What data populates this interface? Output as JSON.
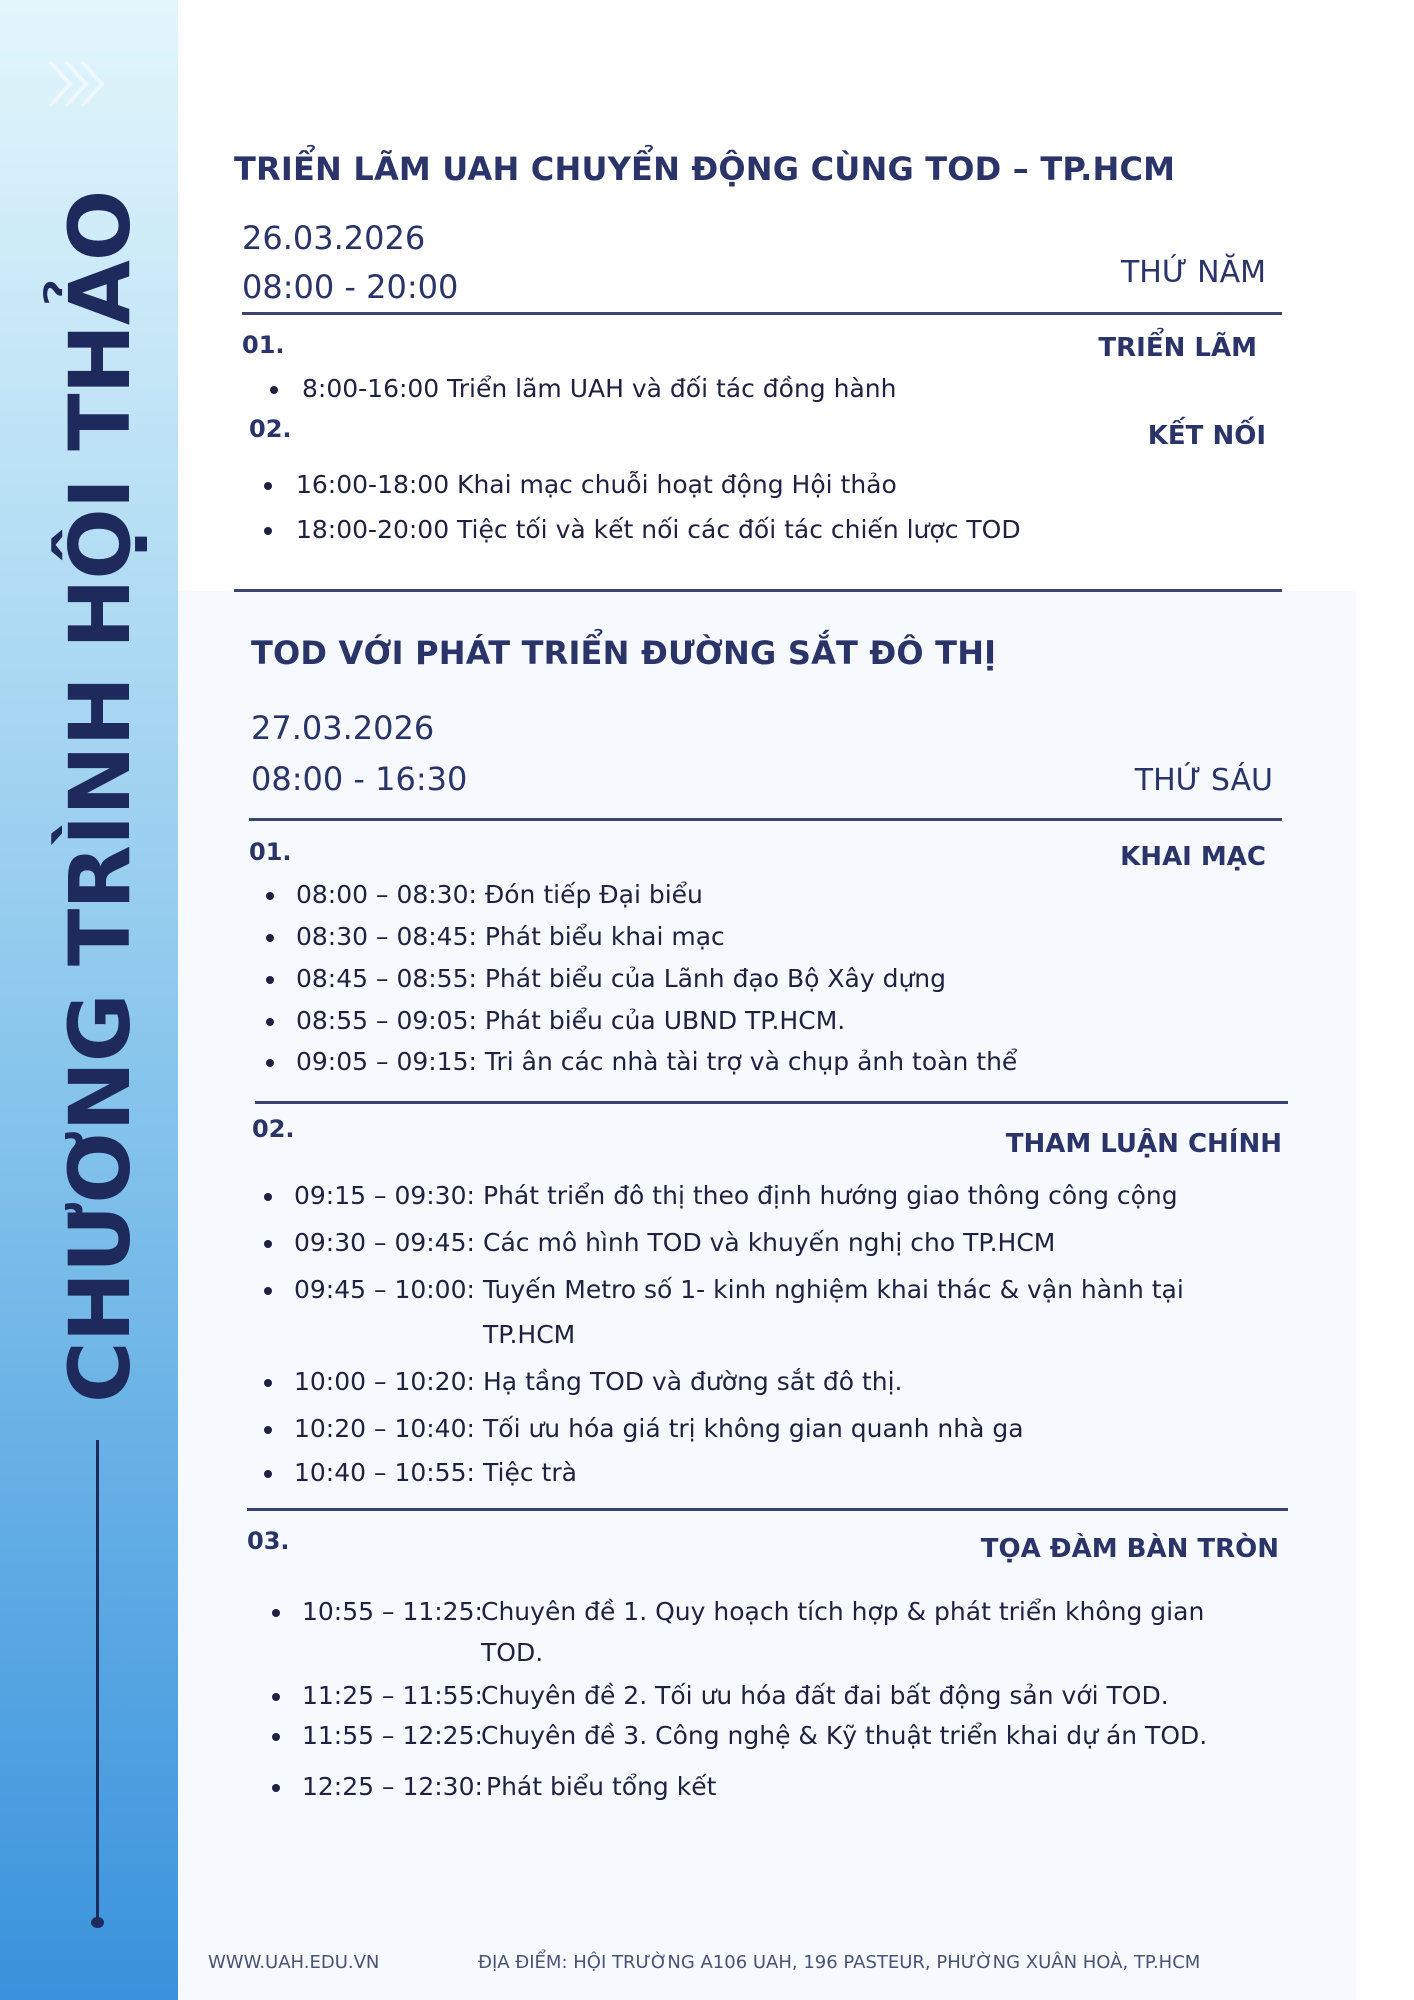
{
  "sidebar": {
    "title": "CHƯƠNG TRÌNH HỘI THẢO",
    "colors": {
      "top": "#e3f6fc",
      "bottom": "#3a92dc",
      "text": "#1f2a5c"
    }
  },
  "day1": {
    "title": "TRIỂN LÃM UAH CHUYỂN ĐỘNG CÙNG TOD – TP.HCM",
    "date": "26.03.2026",
    "time": "08:00  - 20:00",
    "weekday": "THỨ NĂM",
    "sections": [
      {
        "num": "01.",
        "name": "TRIỂN LÃM",
        "items": [
          "8:00-16:00 Triển lãm UAH và đối tác đồng hành"
        ]
      },
      {
        "num": "02.",
        "name": "KẾT NỐI",
        "items": [
          "16:00-18:00 Khai mạc chuỗi hoạt động Hội thảo",
          "18:00-20:00 Tiệc tối và kết nối các đối tác chiến lược TOD"
        ]
      }
    ]
  },
  "day2": {
    "title": "TOD VỚI PHÁT TRIỂN ĐƯỜNG SẮT ĐÔ THỊ",
    "date": "27.03.2026",
    "time": "08:00  - 16:30",
    "weekday": "THỨ SÁU",
    "sections": [
      {
        "num": "01.",
        "name": "KHAI MẠC",
        "items": [
          {
            "time": "08:00 – 08:30:",
            "text": "Đón tiếp Đại biểu"
          },
          {
            "time": "08:30 – 08:45:",
            "text": "Phát biểu khai mạc"
          },
          {
            "time": "08:45 –  08:55:",
            "text": "Phát biểu của Lãnh đạo Bộ Xây dựng"
          },
          {
            "time": "08:55 – 09:05:",
            "text": "Phát biểu của UBND TP.HCM."
          },
          {
            "time": "09:05 – 09:15:",
            "text": "Tri ân các nhà tài trợ và chụp ảnh toàn thể"
          }
        ]
      },
      {
        "num": "02.",
        "name": "THAM LUẬN CHÍNH",
        "items": [
          {
            "time": "09:15 – 09:30:",
            "text": "Phát triển đô thị theo định hướng giao thông công cộng"
          },
          {
            "time": "09:30 – 09:45:",
            "text": "Các mô hình TOD và khuyến nghị cho TP.HCM"
          },
          {
            "time": "09:45 – 10:00:",
            "text": "Tuyến Metro số 1- kinh nghiệm khai thác & vận hành tại",
            "cont": "TP.HCM"
          },
          {
            "time": "10:00 – 10:20:",
            "text": "Hạ tầng TOD và đường sắt đô thị."
          },
          {
            "time": "10:20 – 10:40:",
            "text": "Tối ưu hóa giá trị không gian quanh nhà ga"
          },
          {
            "time": "10:40 – 10:55:",
            "text": "Tiệc trà"
          }
        ]
      },
      {
        "num": "03.",
        "name": "TỌA ĐÀM BÀN TRÒN",
        "items": [
          {
            "time": "10:55 – 11:25:",
            "text": "Chuyên đề 1. Quy hoạch tích hợp & phát triển không gian",
            "cont": "TOD."
          },
          {
            "time": "11:25 – 11:55:",
            "text": "Chuyên đề 2. Tối ưu hóa đất đai bất động sản với TOD."
          },
          {
            "time": "11:55 – 12:25:",
            "text": "Chuyên đề 3. Công nghệ & Kỹ thuật triển khai dự án TOD."
          },
          {
            "time": "12:25 – 12:30:",
            "text": "Phát biểu tổng kết"
          }
        ]
      }
    ]
  },
  "footer": {
    "website": "WWW.UAH.EDU.VN",
    "address": "ĐỊA ĐIỂM: HỘI TRƯỜNG A106 UAH, 196 PASTEUR, PHƯỜNG XUÂN HOÀ, TP.HCM"
  }
}
